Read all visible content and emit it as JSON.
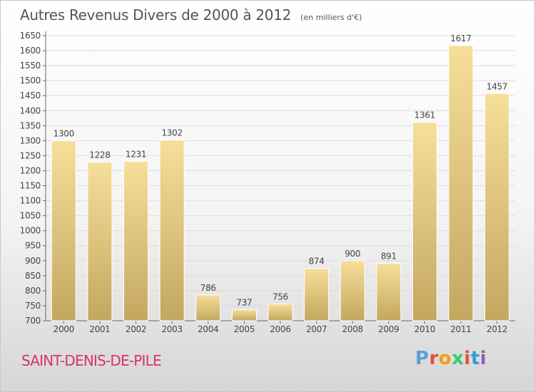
{
  "header": {
    "title": "Autres Revenus Divers de 2000 à 2012",
    "subtitle": "(en milliers d'€)"
  },
  "footer": {
    "commune": "SAINT-DENIS-DE-PILE",
    "brand": "Proxiti"
  },
  "colors": {
    "bar_light": "#f6df9a",
    "bar_dark": "#c4a75f",
    "text": "#555555",
    "commune": "#d6336c",
    "logo_letters": [
      "#5aa0d8",
      "#e74c3c",
      "#f39c12",
      "#2ecc71",
      "#e74c3c",
      "#3498db",
      "#9b59b6"
    ]
  },
  "chart_data": {
    "type": "bar",
    "title": "Autres Revenus Divers de 2000 à 2012",
    "subtitle": "(en milliers d'€)",
    "categories": [
      "2000",
      "2001",
      "2002",
      "2003",
      "2004",
      "2005",
      "2006",
      "2007",
      "2008",
      "2009",
      "2010",
      "2011",
      "2012"
    ],
    "values": [
      1300,
      1228,
      1231,
      1302,
      786,
      737,
      756,
      874,
      900,
      891,
      1361,
      1617,
      1457
    ],
    "ylim": [
      700,
      1650
    ],
    "yticks": [
      700,
      750,
      800,
      850,
      900,
      950,
      1000,
      1050,
      1100,
      1150,
      1200,
      1250,
      1300,
      1350,
      1400,
      1450,
      1500,
      1550,
      1600,
      1650
    ],
    "grid": true,
    "data_labels": true
  }
}
